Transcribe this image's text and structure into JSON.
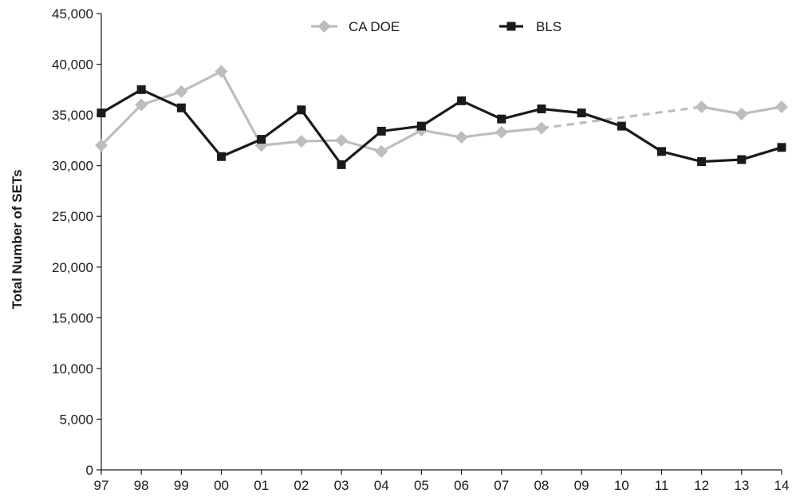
{
  "chart_data": {
    "type": "line",
    "title": "",
    "xlabel": "",
    "ylabel": "Total Number of SETs",
    "categories": [
      "97",
      "98",
      "99",
      "00",
      "01",
      "02",
      "03",
      "04",
      "05",
      "06",
      "07",
      "08",
      "09",
      "10",
      "11",
      "12",
      "13",
      "14"
    ],
    "ylim": [
      0,
      45000
    ],
    "yticks": [
      0,
      5000,
      10000,
      15000,
      20000,
      25000,
      30000,
      35000,
      40000,
      45000
    ],
    "ytick_labels": [
      "0",
      "5,000",
      "10,000",
      "15,000",
      "20,000",
      "25,000",
      "30,000",
      "35,000",
      "40,000",
      "45,000"
    ],
    "grid": false,
    "legend_position": "top-center",
    "series": [
      {
        "name": "CA DOE",
        "color": "#bdbdbd",
        "marker": "diamond",
        "values": [
          32000,
          36000,
          37300,
          39300,
          32000,
          32400,
          32500,
          31400,
          33500,
          32800,
          33300,
          33700,
          null,
          null,
          null,
          35800,
          35100,
          35800
        ],
        "gap_style": "dashed"
      },
      {
        "name": "BLS",
        "color": "#1a1a1a",
        "marker": "square",
        "values": [
          35200,
          37500,
          35700,
          30900,
          32600,
          35500,
          30100,
          33400,
          33900,
          36400,
          34600,
          35600,
          35200,
          33900,
          31400,
          30400,
          30600,
          31800
        ],
        "gap_style": "solid"
      }
    ]
  }
}
